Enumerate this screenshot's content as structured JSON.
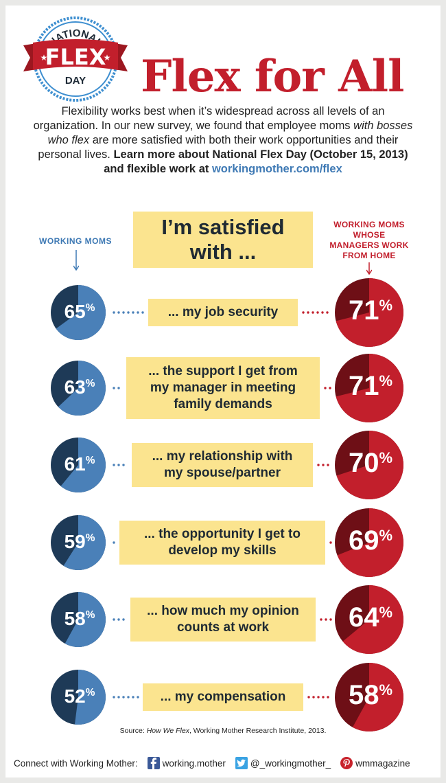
{
  "badge": {
    "top_text": "NATIONAL",
    "main_text": "FLEX",
    "bottom_text": "DAY"
  },
  "title": "Flex for All",
  "intro": {
    "part1": "Flexibility works best when it’s widespread across all levels of an organization. In our new survey, we found that employee moms ",
    "part2_italic": "with bosses who flex",
    "part3": " are more satisfied with both their work opportunities and their personal lives. ",
    "part4_bold": "Learn more about National Flex Day (October 15, 2013) and flexible work at ",
    "link": "workingmother.com/flex"
  },
  "heading": {
    "line1": "I’m satisfied",
    "line2": "with ..."
  },
  "left_label": "WORKING MOMS",
  "right_label": {
    "line1": "WORKING MOMS",
    "line2": "WHOSE",
    "line3": "MANAGERS WORK",
    "line4": "FROM HOME"
  },
  "colors": {
    "blue_light": "#4a80b8",
    "blue_dark": "#1e3a57",
    "red_light": "#c21f2c",
    "red_dark": "#6e0f16",
    "yellow": "#fbe48f"
  },
  "chart_data": {
    "type": "pie",
    "series": [
      {
        "name": "WORKING MOMS",
        "values": [
          65,
          63,
          61,
          59,
          58,
          52
        ]
      },
      {
        "name": "WORKING MOMS WHOSE MANAGERS WORK FROM HOME",
        "values": [
          71,
          71,
          70,
          69,
          64,
          58
        ]
      }
    ],
    "categories": [
      "... my job security",
      "... the support I get from my manager in meeting family demands",
      "... my relationship with my spouse/partner",
      "... the opportunity I get to develop my skills",
      "... how much my opinion counts at work",
      "... my compensation"
    ],
    "percent_symbol": "%"
  },
  "rows_text": [
    {
      "lines": [
        "... my job security"
      ]
    },
    {
      "lines": [
        "... the support I get from",
        "my manager in meeting",
        "family demands"
      ]
    },
    {
      "lines": [
        "... my relationship with",
        "my spouse/partner"
      ]
    },
    {
      "lines": [
        "... the opportunity I get to",
        "develop my skills"
      ]
    },
    {
      "lines": [
        "... how much my opinion",
        "counts at work"
      ]
    },
    {
      "lines": [
        "... my compensation"
      ]
    }
  ],
  "source": {
    "prefix": "Source: ",
    "italic": "How We Flex",
    "suffix": ", Working Mother Research Institute, 2013."
  },
  "footer": {
    "label": "Connect with Working Mother:",
    "facebook": "working.mother",
    "twitter": "@_workingmother_",
    "pinterest": "wmmagazine"
  }
}
